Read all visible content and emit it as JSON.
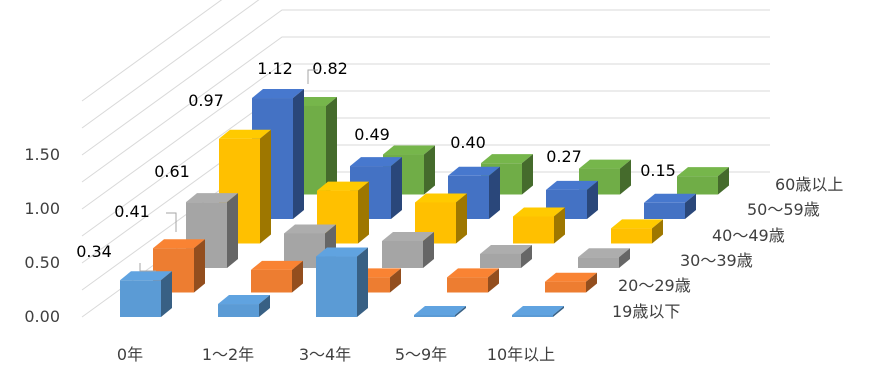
{
  "chart_data": {
    "type": "bar",
    "subtype": "3d-clustered-column",
    "categories": [
      "0年",
      "1～2年",
      "3～4年",
      "5～9年",
      "10年以上"
    ],
    "series": [
      {
        "name": "19歳以下",
        "color": "#5B9BD5",
        "values": [
          0.34,
          0.12,
          0.56,
          0.0,
          0.0
        ]
      },
      {
        "name": "20～29歳",
        "color": "#ED7D31",
        "values": [
          0.41,
          0.21,
          0.14,
          0.14,
          0.1
        ]
      },
      {
        "name": "30～39歳",
        "color": "#A5A5A5",
        "values": [
          0.61,
          0.32,
          0.25,
          0.13,
          0.1
        ]
      },
      {
        "name": "40～49歳",
        "color": "#FFC000",
        "values": [
          0.97,
          0.49,
          0.38,
          0.25,
          0.14
        ]
      },
      {
        "name": "50～59歳",
        "color": "#4472C4",
        "values": [
          1.12,
          0.49,
          0.4,
          0.27,
          0.15
        ]
      },
      {
        "name": "60歳以上",
        "color": "#70AD47",
        "values": [
          0.82,
          0.37,
          0.29,
          0.24,
          0.17
        ]
      }
    ],
    "data_labels": [
      {
        "series": 0,
        "category": 0,
        "text": "0.34"
      },
      {
        "series": 1,
        "category": 0,
        "text": "0.41"
      },
      {
        "series": 2,
        "category": 0,
        "text": "0.61"
      },
      {
        "series": 3,
        "category": 0,
        "text": "0.97"
      },
      {
        "series": 4,
        "category": 0,
        "text": "1.12"
      },
      {
        "series": 5,
        "category": 0,
        "text": "0.82"
      },
      {
        "series": 4,
        "category": 1,
        "text": "0.49"
      },
      {
        "series": 4,
        "category": 2,
        "text": "0.40"
      },
      {
        "series": 4,
        "category": 3,
        "text": "0.27"
      },
      {
        "series": 4,
        "category": 4,
        "text": "0.15"
      }
    ],
    "y_ticks": [
      "0.00",
      "0.50",
      "1.00",
      "1.50"
    ],
    "ylim": [
      0,
      2.0
    ],
    "grid": true,
    "legend": "none"
  }
}
